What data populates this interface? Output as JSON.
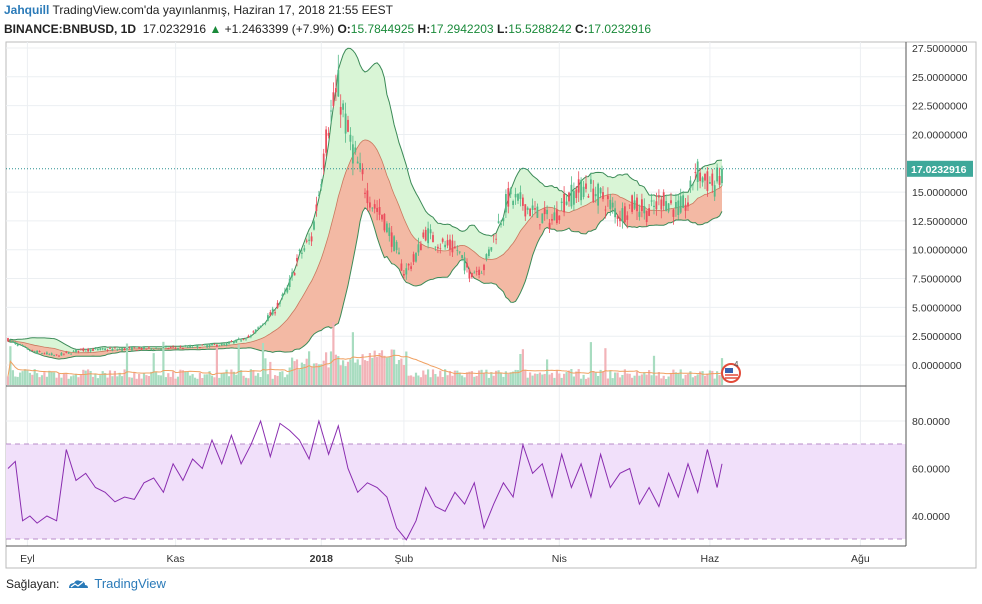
{
  "header": {
    "author": "Jahquill",
    "published": "TradingView.com'da yayınlanmış, Haziran 17, 2018 21:55 EEST",
    "symbol": "BINANCE:BNBUSD, 1D",
    "last": "17.0232916",
    "change": "+1.2463399 (+7.9%)",
    "o_label": "O:",
    "o_value": "15.7844925",
    "h_label": "H:",
    "h_value": "17.2942203",
    "l_label": "L:",
    "l_value": "15.5288242",
    "c_label": "C:",
    "c_value": "17.0232916"
  },
  "footer": {
    "provider_label": "Sağlayan:",
    "brand": "TradingView"
  },
  "colors": {
    "up": "#53b987",
    "down": "#eb4d5c",
    "band_upper_fill": "#d9f5d6",
    "band_lower_fill": "#f3b9a4",
    "band_line": "#3b8a57",
    "rsi_line": "#8a2db0",
    "rsi_band": "#f1e0fa",
    "volume_ma": "#f0a060",
    "price_line": "#2a9090",
    "last_label": "#3ea89a"
  },
  "chart_data": [
    {
      "type": "candlestick",
      "title": "BINANCE:BNBUSD, 1D",
      "last_price_label": "17.0232916",
      "y_ticks": [
        "27.5000000",
        "25.0000000",
        "22.5000000",
        "20.0000000",
        "15.0000000",
        "12.5000000",
        "10.0000000",
        "7.5000000",
        "5.0000000",
        "2.5000000",
        "0.0000000"
      ],
      "ylim": [
        -1.5,
        28.0
      ],
      "x_ticks": [
        "Eyl",
        "Kas",
        "2018",
        "Şub",
        "Nis",
        "Haz",
        "Ağu"
      ],
      "x_tick_days": [
        8,
        69,
        129,
        163,
        227,
        289,
        351
      ],
      "days_span": [
        0,
        380
      ],
      "close_anchors": [
        [
          0,
          2.2
        ],
        [
          10,
          1.2
        ],
        [
          20,
          0.8
        ],
        [
          30,
          1.3
        ],
        [
          50,
          1.4
        ],
        [
          70,
          1.5
        ],
        [
          90,
          1.8
        ],
        [
          100,
          2.5
        ],
        [
          110,
          4.8
        ],
        [
          115,
          6.5
        ],
        [
          120,
          9.5
        ],
        [
          125,
          11
        ],
        [
          128,
          15
        ],
        [
          132,
          21
        ],
        [
          136,
          24
        ],
        [
          140,
          20
        ],
        [
          143,
          18
        ],
        [
          146,
          16
        ],
        [
          150,
          14
        ],
        [
          155,
          12.5
        ],
        [
          160,
          10
        ],
        [
          163,
          8
        ],
        [
          167,
          9
        ],
        [
          172,
          11.5
        ],
        [
          178,
          10.5
        ],
        [
          185,
          10
        ],
        [
          190,
          8
        ],
        [
          196,
          8.5
        ],
        [
          200,
          11
        ],
        [
          206,
          14.5
        ],
        [
          212,
          14
        ],
        [
          218,
          13
        ],
        [
          224,
          12.5
        ],
        [
          230,
          14.5
        ],
        [
          238,
          15.5
        ],
        [
          245,
          14.5
        ],
        [
          252,
          13
        ],
        [
          258,
          14
        ],
        [
          264,
          13.2
        ],
        [
          270,
          14.5
        ],
        [
          275,
          13.5
        ],
        [
          280,
          14
        ],
        [
          283,
          17
        ],
        [
          287,
          16
        ],
        [
          291,
          15.6
        ],
        [
          294,
          17.02
        ]
      ],
      "overlays": [
        "bollinger_bands",
        "volume_bars",
        "volume_ma"
      ]
    },
    {
      "type": "line",
      "title": "",
      "y_ticks": [
        "80.0000",
        "60.0000",
        "40.0000"
      ],
      "ylim": [
        25,
        90
      ],
      "band": [
        30,
        70
      ],
      "x_days": [
        0,
        3,
        6,
        9,
        12,
        16,
        20,
        24,
        28,
        32,
        36,
        40,
        44,
        48,
        52,
        56,
        60,
        64,
        68,
        72,
        76,
        80,
        84,
        88,
        92,
        96,
        100,
        104,
        108,
        112,
        116,
        120,
        124,
        128,
        132,
        136,
        140,
        144,
        148,
        152,
        156,
        160,
        164,
        168,
        172,
        176,
        180,
        184,
        188,
        192,
        196,
        200,
        204,
        208,
        212,
        216,
        220,
        224,
        228,
        232,
        236,
        240,
        244,
        248,
        252,
        256,
        260,
        264,
        268,
        272,
        276,
        280,
        284,
        288,
        292,
        294
      ],
      "values": [
        60,
        63,
        38,
        40,
        37,
        40,
        38,
        68,
        55,
        58,
        52,
        50,
        46,
        48,
        47,
        54,
        56,
        50,
        62,
        55,
        64,
        60,
        72,
        62,
        74,
        62,
        70,
        80,
        65,
        79,
        76,
        72,
        64,
        80,
        66,
        78,
        60,
        50,
        54,
        52,
        48,
        35,
        30,
        38,
        52,
        44,
        42,
        50,
        45,
        54,
        35,
        45,
        54,
        48,
        70,
        58,
        62,
        48,
        66,
        52,
        62,
        48,
        66,
        52,
        58,
        60,
        45,
        52,
        44,
        58,
        48,
        62,
        50,
        68,
        52,
        62
      ]
    }
  ]
}
